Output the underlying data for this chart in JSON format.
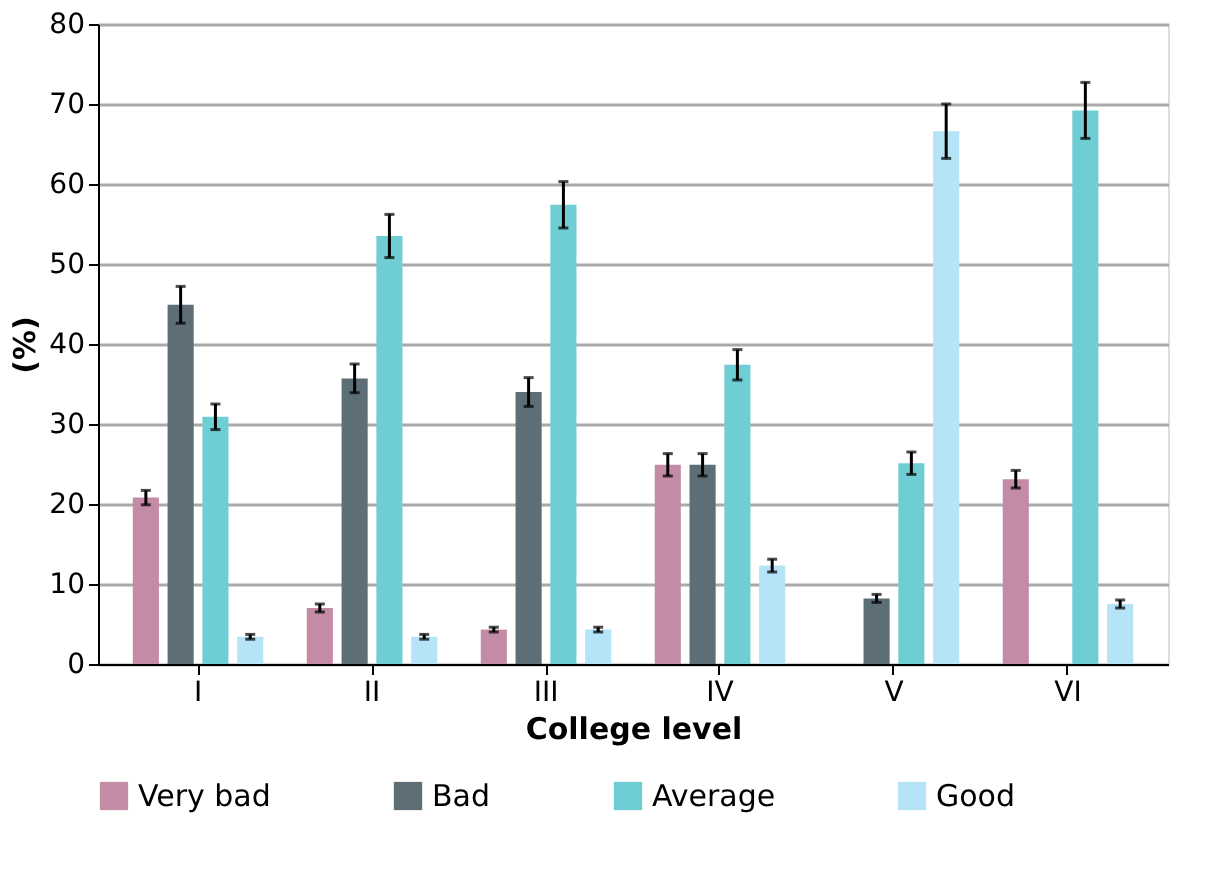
{
  "chart_data": {
    "type": "bar",
    "xlabel": "College level",
    "ylabel": "(%)",
    "categories": [
      "I",
      "II",
      "III",
      "IV",
      "V",
      "VI"
    ],
    "series": [
      {
        "name": "Very bad",
        "color": "#c38ba5",
        "values": [
          20.8,
          7.0,
          4.3,
          24.9,
          null,
          23.1
        ],
        "errors": [
          0.9,
          0.5,
          0.3,
          1.4,
          null,
          1.1
        ]
      },
      {
        "name": "Bad",
        "color": "#5e6e76",
        "values": [
          44.9,
          35.7,
          34.0,
          24.9,
          8.2,
          null
        ],
        "errors": [
          2.3,
          1.8,
          1.8,
          1.4,
          0.5,
          null
        ]
      },
      {
        "name": "Average",
        "color": "#6fcdd4",
        "values": [
          30.9,
          53.5,
          57.4,
          37.4,
          25.1,
          69.2
        ],
        "errors": [
          1.6,
          2.7,
          2.9,
          1.9,
          1.4,
          3.5
        ]
      },
      {
        "name": "Good",
        "color": "#b5e3f7",
        "values": [
          3.4,
          3.4,
          4.3,
          12.3,
          66.6,
          7.5
        ],
        "errors": [
          0.3,
          0.3,
          0.3,
          0.8,
          3.4,
          0.5
        ]
      }
    ],
    "ylim": [
      0,
      80
    ],
    "yticks": [
      0,
      10,
      20,
      30,
      40,
      50,
      60,
      70,
      80
    ],
    "grid": "y",
    "legend": "bottom"
  }
}
